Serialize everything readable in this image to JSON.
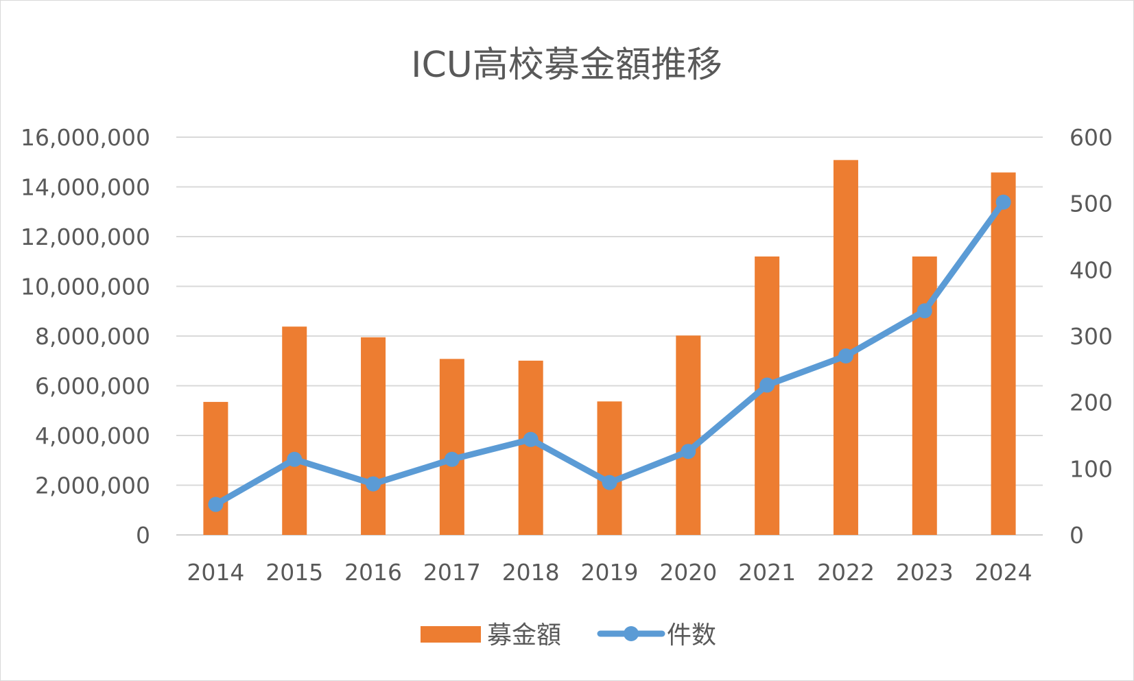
{
  "chart_data": {
    "type": "bar",
    "title": "ICU高校募金額推移",
    "categories": [
      "2014",
      "2015",
      "2016",
      "2017",
      "2018",
      "2019",
      "2020",
      "2021",
      "2022",
      "2023",
      "2024"
    ],
    "series": [
      {
        "name": "募金額",
        "type": "bar",
        "axis": "left",
        "color": "#ED7D31",
        "values": [
          5350000,
          8380000,
          7950000,
          7080000,
          7010000,
          5370000,
          8020000,
          11200000,
          15080000,
          11200000,
          14580000
        ]
      },
      {
        "name": "件数",
        "type": "line",
        "axis": "right",
        "color": "#5B9BD5",
        "values": [
          46,
          114,
          77,
          114,
          144,
          79,
          126,
          226,
          270,
          338,
          502
        ]
      }
    ],
    "y_left": {
      "range": [
        0,
        16000000
      ],
      "ticks": [
        "0",
        "2,000,000",
        "4,000,000",
        "6,000,000",
        "8,000,000",
        "10,000,000",
        "12,000,000",
        "14,000,000",
        "16,000,000"
      ]
    },
    "y_right": {
      "range": [
        0,
        600
      ],
      "ticks": [
        "0",
        "100",
        "200",
        "300",
        "400",
        "500",
        "600"
      ]
    },
    "grid": true,
    "legend": "bottom-center"
  }
}
